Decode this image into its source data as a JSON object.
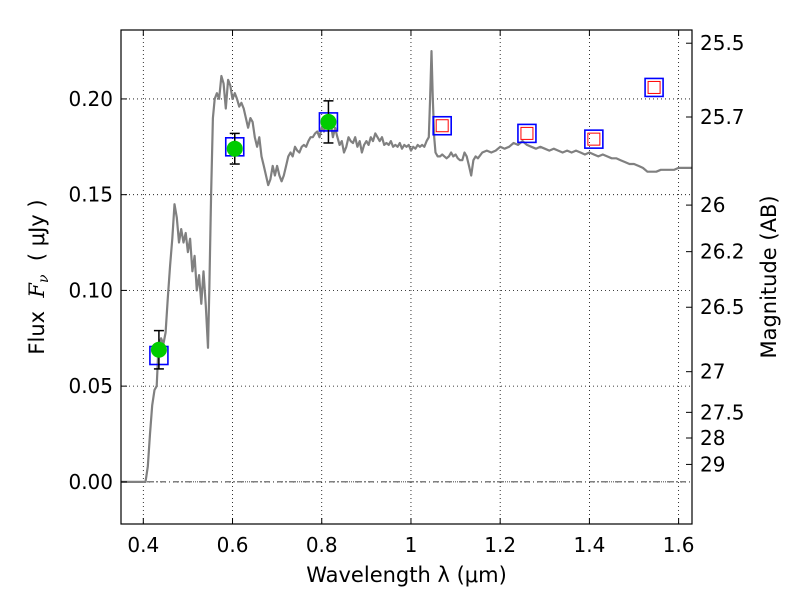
{
  "chart_data": {
    "type": "scatter",
    "xlabel": "Wavelength  λ (μm)",
    "ylabel_left_prefix": "Flux  ",
    "ylabel_left_math": "F",
    "ylabel_left_sub": "ν",
    "ylabel_left_suffix": "  ( μJy )",
    "ylabel_right": "Magnitude (AB)",
    "xlim": [
      0.35,
      1.63
    ],
    "ylim": [
      -0.022,
      0.236
    ],
    "x_ticks": [
      {
        "v": 0.4,
        "label": "0.4"
      },
      {
        "v": 0.6,
        "label": "0.6"
      },
      {
        "v": 0.8,
        "label": "0.8"
      },
      {
        "v": 1.0,
        "label": "1"
      },
      {
        "v": 1.2,
        "label": "1.2"
      },
      {
        "v": 1.4,
        "label": "1.4"
      },
      {
        "v": 1.6,
        "label": "1.6"
      }
    ],
    "y_ticks": [
      {
        "v": 0.0,
        "label": "0.00"
      },
      {
        "v": 0.05,
        "label": "0.05"
      },
      {
        "v": 0.1,
        "label": "0.10"
      },
      {
        "v": 0.15,
        "label": "0.15"
      },
      {
        "v": 0.2,
        "label": "0.20"
      }
    ],
    "right_ticks": [
      {
        "mag": 25.5,
        "label": "25.5"
      },
      {
        "mag": 25.7,
        "label": "25.7"
      },
      {
        "mag": 26,
        "label": "26"
      },
      {
        "mag": 26.2,
        "label": "26.2"
      },
      {
        "mag": 26.5,
        "label": "26.5"
      },
      {
        "mag": 27,
        "label": "27"
      },
      {
        "mag": 27.5,
        "label": "27.5"
      },
      {
        "mag": 28,
        "label": "28"
      },
      {
        "mag": 29,
        "label": "29"
      }
    ],
    "grid": true,
    "colors": {
      "spectrum": "#808080",
      "observed_fill": "#00cc00",
      "model_box": "#0000ff",
      "model_inner": "#ff0000",
      "errorbar": "#000000",
      "zero_line": "#000000"
    },
    "series": [
      {
        "kind": "spectrum",
        "points": [
          [
            0.35,
            0.0
          ],
          [
            0.405,
            0.0
          ],
          [
            0.41,
            0.008
          ],
          [
            0.415,
            0.025
          ],
          [
            0.42,
            0.04
          ],
          [
            0.425,
            0.048
          ],
          [
            0.43,
            0.05
          ],
          [
            0.433,
            0.065
          ],
          [
            0.436,
            0.072
          ],
          [
            0.44,
            0.075
          ],
          [
            0.445,
            0.072
          ],
          [
            0.45,
            0.078
          ],
          [
            0.455,
            0.096
          ],
          [
            0.46,
            0.113
          ],
          [
            0.465,
            0.127
          ],
          [
            0.47,
            0.145
          ],
          [
            0.475,
            0.138
          ],
          [
            0.48,
            0.125
          ],
          [
            0.485,
            0.132
          ],
          [
            0.49,
            0.125
          ],
          [
            0.495,
            0.13
          ],
          [
            0.5,
            0.12
          ],
          [
            0.505,
            0.127
          ],
          [
            0.51,
            0.11
          ],
          [
            0.515,
            0.118
          ],
          [
            0.52,
            0.1
          ],
          [
            0.525,
            0.108
          ],
          [
            0.53,
            0.093
          ],
          [
            0.535,
            0.11
          ],
          [
            0.54,
            0.092
          ],
          [
            0.545,
            0.07
          ],
          [
            0.548,
            0.1
          ],
          [
            0.552,
            0.15
          ],
          [
            0.556,
            0.19
          ],
          [
            0.56,
            0.2
          ],
          [
            0.565,
            0.203
          ],
          [
            0.57,
            0.2
          ],
          [
            0.575,
            0.212
          ],
          [
            0.58,
            0.208
          ],
          [
            0.585,
            0.195
          ],
          [
            0.59,
            0.21
          ],
          [
            0.595,
            0.207
          ],
          [
            0.6,
            0.2
          ],
          [
            0.605,
            0.203
          ],
          [
            0.61,
            0.2
          ],
          [
            0.615,
            0.196
          ],
          [
            0.62,
            0.198
          ],
          [
            0.625,
            0.195
          ],
          [
            0.63,
            0.19
          ],
          [
            0.635,
            0.185
          ],
          [
            0.64,
            0.19
          ],
          [
            0.645,
            0.188
          ],
          [
            0.65,
            0.18
          ],
          [
            0.655,
            0.175
          ],
          [
            0.66,
            0.18
          ],
          [
            0.665,
            0.17
          ],
          [
            0.67,
            0.165
          ],
          [
            0.675,
            0.16
          ],
          [
            0.68,
            0.155
          ],
          [
            0.685,
            0.158
          ],
          [
            0.69,
            0.165
          ],
          [
            0.695,
            0.16
          ],
          [
            0.7,
            0.165
          ],
          [
            0.705,
            0.16
          ],
          [
            0.71,
            0.157
          ],
          [
            0.715,
            0.16
          ],
          [
            0.72,
            0.165
          ],
          [
            0.725,
            0.17
          ],
          [
            0.73,
            0.172
          ],
          [
            0.735,
            0.17
          ],
          [
            0.74,
            0.175
          ],
          [
            0.745,
            0.173
          ],
          [
            0.75,
            0.172
          ],
          [
            0.755,
            0.175
          ],
          [
            0.76,
            0.176
          ],
          [
            0.765,
            0.175
          ],
          [
            0.77,
            0.178
          ],
          [
            0.775,
            0.18
          ],
          [
            0.78,
            0.18
          ],
          [
            0.785,
            0.182
          ],
          [
            0.79,
            0.183
          ],
          [
            0.795,
            0.18
          ],
          [
            0.8,
            0.185
          ],
          [
            0.805,
            0.183
          ],
          [
            0.81,
            0.188
          ],
          [
            0.815,
            0.187
          ],
          [
            0.82,
            0.188
          ],
          [
            0.825,
            0.18
          ],
          [
            0.83,
            0.185
          ],
          [
            0.835,
            0.18
          ],
          [
            0.84,
            0.176
          ],
          [
            0.845,
            0.178
          ],
          [
            0.85,
            0.172
          ],
          [
            0.855,
            0.175
          ],
          [
            0.86,
            0.18
          ],
          [
            0.865,
            0.178
          ],
          [
            0.87,
            0.177
          ],
          [
            0.875,
            0.18
          ],
          [
            0.88,
            0.175
          ],
          [
            0.885,
            0.178
          ],
          [
            0.89,
            0.172
          ],
          [
            0.895,
            0.176
          ],
          [
            0.9,
            0.178
          ],
          [
            0.905,
            0.176
          ],
          [
            0.91,
            0.18
          ],
          [
            0.915,
            0.178
          ],
          [
            0.92,
            0.182
          ],
          [
            0.925,
            0.18
          ],
          [
            0.93,
            0.178
          ],
          [
            0.935,
            0.18
          ],
          [
            0.94,
            0.176
          ],
          [
            0.945,
            0.177
          ],
          [
            0.95,
            0.176
          ],
          [
            0.955,
            0.178
          ],
          [
            0.96,
            0.175
          ],
          [
            0.965,
            0.176
          ],
          [
            0.97,
            0.175
          ],
          [
            0.975,
            0.177
          ],
          [
            0.98,
            0.174
          ],
          [
            0.985,
            0.176
          ],
          [
            0.99,
            0.175
          ],
          [
            0.995,
            0.176
          ],
          [
            1.0,
            0.173
          ],
          [
            1.005,
            0.175
          ],
          [
            1.01,
            0.174
          ],
          [
            1.015,
            0.176
          ],
          [
            1.02,
            0.175
          ],
          [
            1.025,
            0.176
          ],
          [
            1.03,
            0.175
          ],
          [
            1.035,
            0.178
          ],
          [
            1.04,
            0.18
          ],
          [
            1.043,
            0.2
          ],
          [
            1.046,
            0.225
          ],
          [
            1.049,
            0.2
          ],
          [
            1.052,
            0.18
          ],
          [
            1.055,
            0.172
          ],
          [
            1.06,
            0.17
          ],
          [
            1.065,
            0.17
          ],
          [
            1.07,
            0.171
          ],
          [
            1.075,
            0.17
          ],
          [
            1.08,
            0.169
          ],
          [
            1.085,
            0.17
          ],
          [
            1.09,
            0.172
          ],
          [
            1.095,
            0.17
          ],
          [
            1.1,
            0.171
          ],
          [
            1.105,
            0.169
          ],
          [
            1.11,
            0.168
          ],
          [
            1.115,
            0.168
          ],
          [
            1.12,
            0.172
          ],
          [
            1.125,
            0.17
          ],
          [
            1.13,
            0.165
          ],
          [
            1.135,
            0.16
          ],
          [
            1.14,
            0.168
          ],
          [
            1.145,
            0.17
          ],
          [
            1.15,
            0.169
          ],
          [
            1.16,
            0.172
          ],
          [
            1.17,
            0.173
          ],
          [
            1.18,
            0.172
          ],
          [
            1.19,
            0.173
          ],
          [
            1.2,
            0.175
          ],
          [
            1.21,
            0.174
          ],
          [
            1.22,
            0.175
          ],
          [
            1.23,
            0.177
          ],
          [
            1.24,
            0.176
          ],
          [
            1.25,
            0.178
          ],
          [
            1.26,
            0.176
          ],
          [
            1.27,
            0.175
          ],
          [
            1.28,
            0.174
          ],
          [
            1.29,
            0.175
          ],
          [
            1.3,
            0.174
          ],
          [
            1.31,
            0.173
          ],
          [
            1.32,
            0.174
          ],
          [
            1.33,
            0.173
          ],
          [
            1.34,
            0.172
          ],
          [
            1.35,
            0.173
          ],
          [
            1.36,
            0.172
          ],
          [
            1.37,
            0.173
          ],
          [
            1.38,
            0.172
          ],
          [
            1.39,
            0.171
          ],
          [
            1.4,
            0.172
          ],
          [
            1.41,
            0.171
          ],
          [
            1.42,
            0.17
          ],
          [
            1.43,
            0.171
          ],
          [
            1.44,
            0.17
          ],
          [
            1.45,
            0.169
          ],
          [
            1.46,
            0.169
          ],
          [
            1.47,
            0.168
          ],
          [
            1.48,
            0.167
          ],
          [
            1.49,
            0.166
          ],
          [
            1.5,
            0.166
          ],
          [
            1.51,
            0.165
          ],
          [
            1.52,
            0.164
          ],
          [
            1.53,
            0.162
          ],
          [
            1.54,
            0.162
          ],
          [
            1.55,
            0.162
          ],
          [
            1.56,
            0.163
          ],
          [
            1.57,
            0.163
          ],
          [
            1.58,
            0.163
          ],
          [
            1.59,
            0.163
          ],
          [
            1.6,
            0.164
          ],
          [
            1.61,
            0.164
          ],
          [
            1.62,
            0.164
          ],
          [
            1.63,
            0.164
          ]
        ]
      },
      {
        "kind": "model",
        "points": [
          {
            "x": 0.435,
            "y": 0.066,
            "inner": false
          },
          {
            "x": 0.605,
            "y": 0.175,
            "inner": false
          },
          {
            "x": 0.815,
            "y": 0.188,
            "inner": false
          },
          {
            "x": 1.07,
            "y": 0.186,
            "inner": true
          },
          {
            "x": 1.26,
            "y": 0.182,
            "inner": true
          },
          {
            "x": 1.41,
            "y": 0.179,
            "inner": true
          },
          {
            "x": 1.545,
            "y": 0.206,
            "inner": true
          }
        ]
      },
      {
        "kind": "observed",
        "points": [
          {
            "x": 0.435,
            "y": 0.069,
            "err": 0.01
          },
          {
            "x": 0.605,
            "y": 0.174,
            "err": 0.008
          },
          {
            "x": 0.815,
            "y": 0.188,
            "err": 0.011
          }
        ]
      }
    ]
  }
}
